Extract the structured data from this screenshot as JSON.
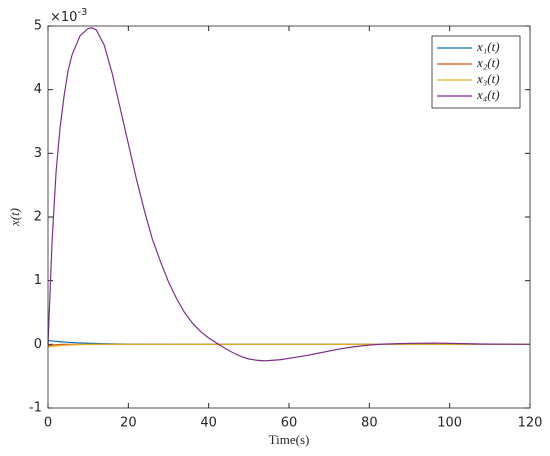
{
  "chart_data": {
    "type": "line",
    "y_label": "x(t)",
    "x_label": "Time(s)",
    "y_exponent_label": "×10",
    "y_exponent_power": "-3",
    "x": [
      0,
      1,
      2,
      3,
      4,
      5,
      6,
      8,
      10,
      11,
      12,
      14,
      16,
      18,
      20,
      22,
      24,
      26,
      28,
      30,
      32,
      34,
      36,
      38,
      40,
      42,
      44,
      46,
      48,
      50,
      52,
      54,
      56,
      58,
      60,
      64,
      68,
      72,
      76,
      80,
      84,
      90,
      96,
      100,
      108,
      120
    ],
    "series": [
      {
        "name": "x₁(t)",
        "color": "#0072bd",
        "values": [
          0.06,
          0.053,
          0.047,
          0.041,
          0.036,
          0.032,
          0.028,
          0.022,
          0.017,
          0.015,
          0.013,
          0.01,
          0.008,
          0.006,
          0.004,
          0.003,
          0.002,
          0.0015,
          0.001,
          0,
          0,
          0,
          0,
          0,
          0,
          0,
          0,
          0,
          0,
          0,
          0,
          0,
          0,
          0,
          0,
          0,
          0,
          0,
          0,
          0,
          0,
          0,
          0,
          0,
          0,
          0
        ]
      },
      {
        "name": "x₂(t)",
        "color": "#d95319",
        "values": [
          -0.02,
          -0.012,
          -0.006,
          -0.003,
          -0.001,
          0,
          0,
          0,
          0,
          0,
          0,
          0,
          0,
          0,
          0,
          0,
          0,
          0,
          0,
          0,
          0,
          0,
          0,
          0,
          0,
          0,
          0,
          0,
          0,
          0,
          0,
          0,
          0,
          0,
          0,
          0,
          0,
          0,
          0,
          0,
          0,
          0,
          0,
          0,
          0,
          0
        ]
      },
      {
        "name": "x₃(t)",
        "color": "#edb120",
        "values": [
          -0.04,
          -0.03,
          -0.025,
          -0.02,
          -0.015,
          -0.01,
          -0.008,
          -0.004,
          -0.002,
          -0.001,
          0,
          0,
          0,
          0,
          0,
          0,
          0,
          0,
          0,
          0,
          0,
          0,
          0,
          0,
          0,
          0,
          0,
          0,
          0,
          0,
          0,
          0,
          0,
          0,
          0,
          0,
          0,
          0,
          0,
          0,
          0,
          0,
          0,
          0,
          0,
          0
        ]
      },
      {
        "name": "x₄(t)",
        "color": "#7e2f8e",
        "values": [
          0,
          1.6,
          2.7,
          3.4,
          3.9,
          4.3,
          4.55,
          4.85,
          4.96,
          4.97,
          4.94,
          4.7,
          4.25,
          3.7,
          3.15,
          2.6,
          2.1,
          1.65,
          1.3,
          0.98,
          0.72,
          0.5,
          0.33,
          0.2,
          0.1,
          0.02,
          -0.06,
          -0.13,
          -0.19,
          -0.23,
          -0.25,
          -0.26,
          -0.25,
          -0.24,
          -0.22,
          -0.18,
          -0.13,
          -0.08,
          -0.04,
          -0.01,
          0.005,
          0.015,
          0.02,
          0.015,
          0.005,
          0
        ]
      }
    ],
    "xlim": [
      0,
      120
    ],
    "xticks": [
      0,
      20,
      40,
      60,
      80,
      100,
      120
    ],
    "ylim": [
      -1,
      5
    ],
    "yticks": [
      -1,
      0,
      1,
      2,
      3,
      4,
      5
    ],
    "grid": false,
    "legend": "northeast"
  }
}
